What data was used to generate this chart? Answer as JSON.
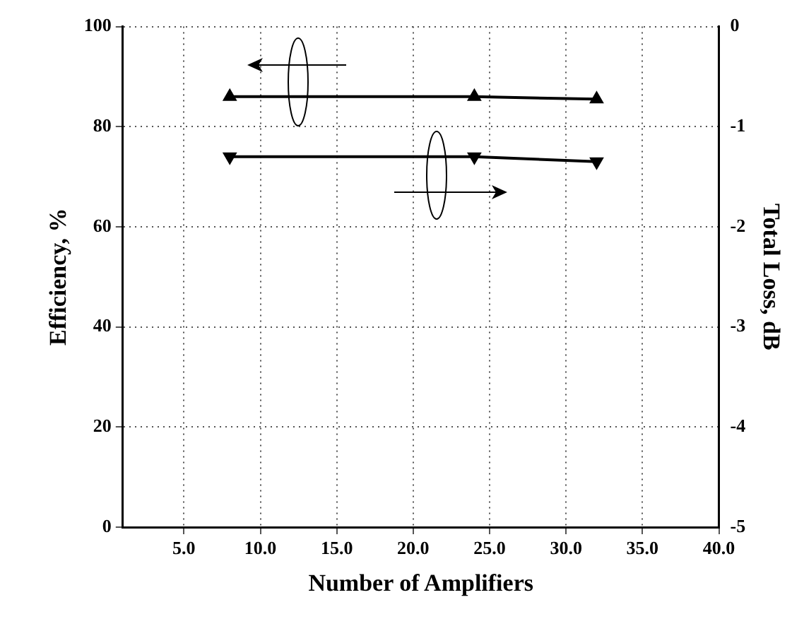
{
  "chart_data": {
    "type": "line",
    "xlabel": "Number of Amplifiers",
    "ylabel": "Efficiency, %",
    "y2label": "Total Loss, dB",
    "xlim": [
      1,
      40
    ],
    "xticks": [
      {
        "value": 5,
        "label": "5.0"
      },
      {
        "value": 10,
        "label": "10.0"
      },
      {
        "value": 15,
        "label": "15.0"
      },
      {
        "value": 20,
        "label": "20.0"
      },
      {
        "value": 25,
        "label": "25.0"
      },
      {
        "value": 30,
        "label": "30.0"
      },
      {
        "value": 35,
        "label": "35.0"
      },
      {
        "value": 40,
        "label": "40.0"
      }
    ],
    "ylim": [
      0,
      100
    ],
    "yticks": [
      0,
      20,
      40,
      60,
      80,
      100
    ],
    "y2lim": [
      -5,
      0
    ],
    "y2ticks": [
      -5,
      -4,
      -3,
      -2,
      -1,
      0
    ],
    "grid": true,
    "legend": false,
    "marker": "triangle",
    "line_style": "solid",
    "series": [
      {
        "color": "#000000",
        "x": [
          8,
          24,
          32
        ],
        "values": [
          86,
          86,
          85.5
        ]
      },
      {
        "color": "#000000",
        "x": [
          8,
          24,
          32
        ],
        "values": [
          -1.3,
          -1.3,
          -1.35
        ],
        "axis": "y2"
      }
    ]
  }
}
